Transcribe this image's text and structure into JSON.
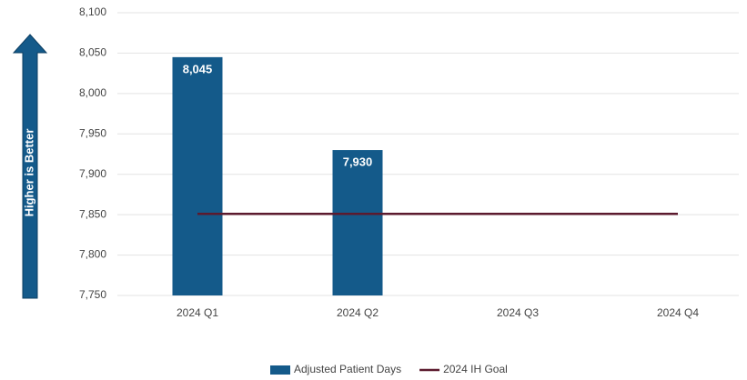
{
  "chart_data": {
    "type": "bar",
    "annotation": "Higher is Better",
    "categories": [
      "2024 Q1",
      "2024 Q2",
      "2024 Q3",
      "2024 Q4"
    ],
    "series": [
      {
        "name": "Adjusted Patient Days",
        "type": "bar",
        "color": "#145a8a",
        "values": [
          8045,
          7930,
          null,
          null
        ],
        "value_labels": [
          "8,045",
          "7,930",
          null,
          null
        ]
      },
      {
        "name": "2024 IH Goal",
        "type": "line",
        "color": "#5c1a2e",
        "values": [
          7851,
          7851,
          7851,
          7851
        ]
      }
    ],
    "ylim": [
      7750,
      8100
    ],
    "yticks": [
      {
        "value": 7750,
        "label": "7,750"
      },
      {
        "value": 7800,
        "label": "7,800"
      },
      {
        "value": 7850,
        "label": "7,850"
      },
      {
        "value": 7900,
        "label": "7,900"
      },
      {
        "value": 7950,
        "label": "7,950"
      },
      {
        "value": 8000,
        "label": "8,000"
      },
      {
        "value": 8050,
        "label": "8,050"
      },
      {
        "value": 8100,
        "label": "8,100"
      }
    ],
    "grid": true,
    "legend": "bottom"
  }
}
